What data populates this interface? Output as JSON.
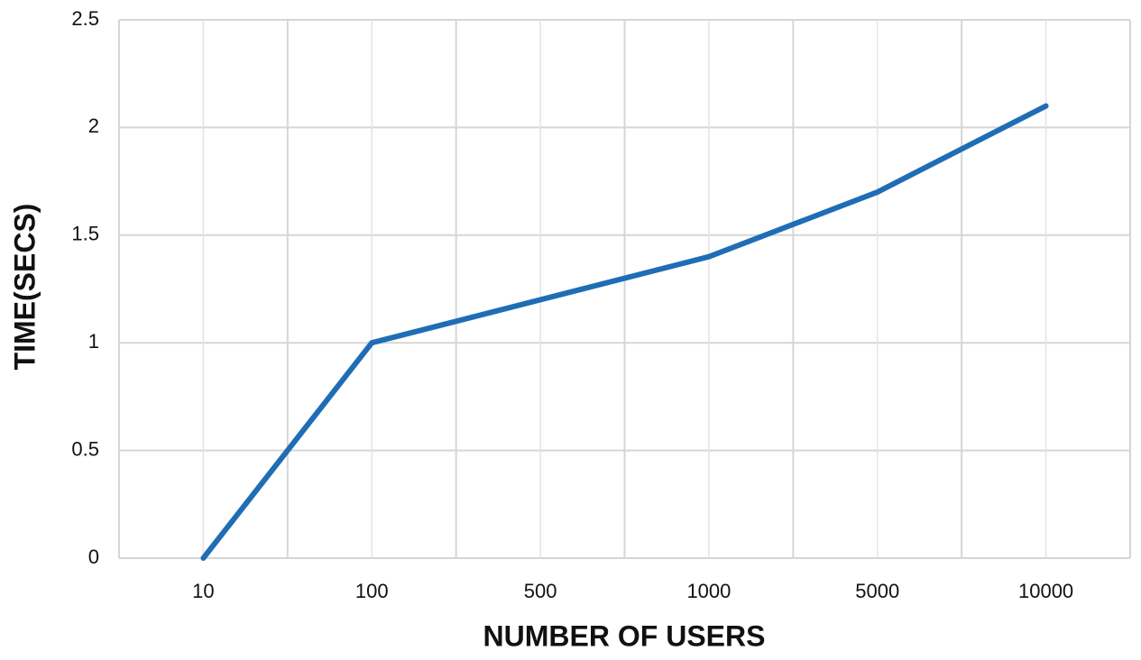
{
  "chart_data": {
    "type": "line",
    "x_label": "NUMBER OF USERS",
    "y_label": "TIME(SECS)",
    "categories": [
      "10",
      "100",
      "500",
      "1000",
      "5000",
      "10000"
    ],
    "series": [
      {
        "name": "Time",
        "color": "#1f6db5",
        "values": [
          0,
          1,
          1.2,
          1.4,
          1.7,
          2.1
        ]
      }
    ],
    "ylim": [
      0,
      2.5
    ],
    "yticks": [
      0,
      0.5,
      1,
      1.5,
      2,
      2.5
    ],
    "grid": true,
    "legend": false
  }
}
